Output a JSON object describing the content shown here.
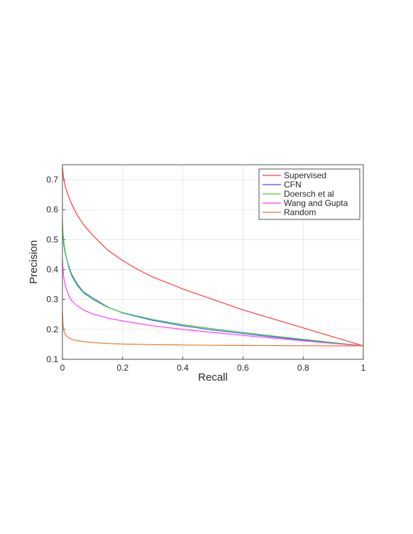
{
  "chart_data": {
    "type": "line",
    "title": "",
    "xlabel": "Recall",
    "ylabel": "Precision",
    "xlim": [
      0,
      1
    ],
    "ylim": [
      0.1,
      0.75
    ],
    "xticks": [
      "0",
      "0.2",
      "0.4",
      "0.6",
      "0.8",
      "1"
    ],
    "yticks": [
      "0.1",
      "0.2",
      "0.3",
      "0.4",
      "0.5",
      "0.6",
      "0.7"
    ],
    "grid": true,
    "legend_position": "top-right",
    "series": [
      {
        "name": "Supervised",
        "color": "#ff3b3b",
        "x": [
          0,
          0.002,
          0.005,
          0.01,
          0.02,
          0.03,
          0.05,
          0.07,
          0.1,
          0.15,
          0.2,
          0.25,
          0.3,
          0.4,
          0.5,
          0.6,
          0.7,
          0.8,
          0.9,
          1.0
        ],
        "y": [
          0.74,
          0.72,
          0.7,
          0.675,
          0.645,
          0.62,
          0.58,
          0.55,
          0.515,
          0.465,
          0.43,
          0.4,
          0.375,
          0.335,
          0.3,
          0.265,
          0.235,
          0.205,
          0.175,
          0.145
        ]
      },
      {
        "name": "CFN",
        "color": "#4a4aff",
        "x": [
          0,
          0.002,
          0.005,
          0.01,
          0.02,
          0.03,
          0.05,
          0.07,
          0.1,
          0.15,
          0.2,
          0.3,
          0.4,
          0.5,
          0.6,
          0.7,
          0.8,
          0.9,
          1.0
        ],
        "y": [
          0.55,
          0.51,
          0.48,
          0.45,
          0.415,
          0.385,
          0.35,
          0.325,
          0.305,
          0.275,
          0.255,
          0.23,
          0.212,
          0.198,
          0.186,
          0.175,
          0.165,
          0.155,
          0.145
        ]
      },
      {
        "name": "Doersch et al",
        "color": "#3ad93a",
        "x": [
          0,
          0.002,
          0.005,
          0.01,
          0.02,
          0.03,
          0.05,
          0.07,
          0.1,
          0.15,
          0.2,
          0.3,
          0.4,
          0.5,
          0.6,
          0.7,
          0.8,
          0.9,
          1.0
        ],
        "y": [
          0.56,
          0.52,
          0.49,
          0.455,
          0.41,
          0.38,
          0.345,
          0.322,
          0.3,
          0.274,
          0.256,
          0.233,
          0.216,
          0.202,
          0.19,
          0.178,
          0.167,
          0.156,
          0.145
        ]
      },
      {
        "name": "Wang and Gupta",
        "color": "#ff3bff",
        "x": [
          0,
          0.002,
          0.005,
          0.01,
          0.02,
          0.03,
          0.05,
          0.07,
          0.1,
          0.15,
          0.2,
          0.3,
          0.4,
          0.5,
          0.6,
          0.7,
          0.8,
          0.9,
          1.0
        ],
        "y": [
          0.43,
          0.4,
          0.37,
          0.345,
          0.315,
          0.297,
          0.278,
          0.265,
          0.252,
          0.238,
          0.228,
          0.212,
          0.2,
          0.19,
          0.18,
          0.171,
          0.162,
          0.153,
          0.145
        ]
      },
      {
        "name": "Random",
        "color": "#e8782a",
        "x": [
          0,
          0.002,
          0.005,
          0.01,
          0.02,
          0.03,
          0.05,
          0.07,
          0.1,
          0.15,
          0.2,
          0.3,
          0.4,
          0.5,
          0.6,
          0.7,
          0.8,
          0.9,
          1.0
        ],
        "y": [
          0.255,
          0.215,
          0.195,
          0.182,
          0.172,
          0.167,
          0.162,
          0.159,
          0.156,
          0.153,
          0.151,
          0.149,
          0.148,
          0.147,
          0.1465,
          0.146,
          0.1455,
          0.145,
          0.145
        ]
      }
    ]
  }
}
